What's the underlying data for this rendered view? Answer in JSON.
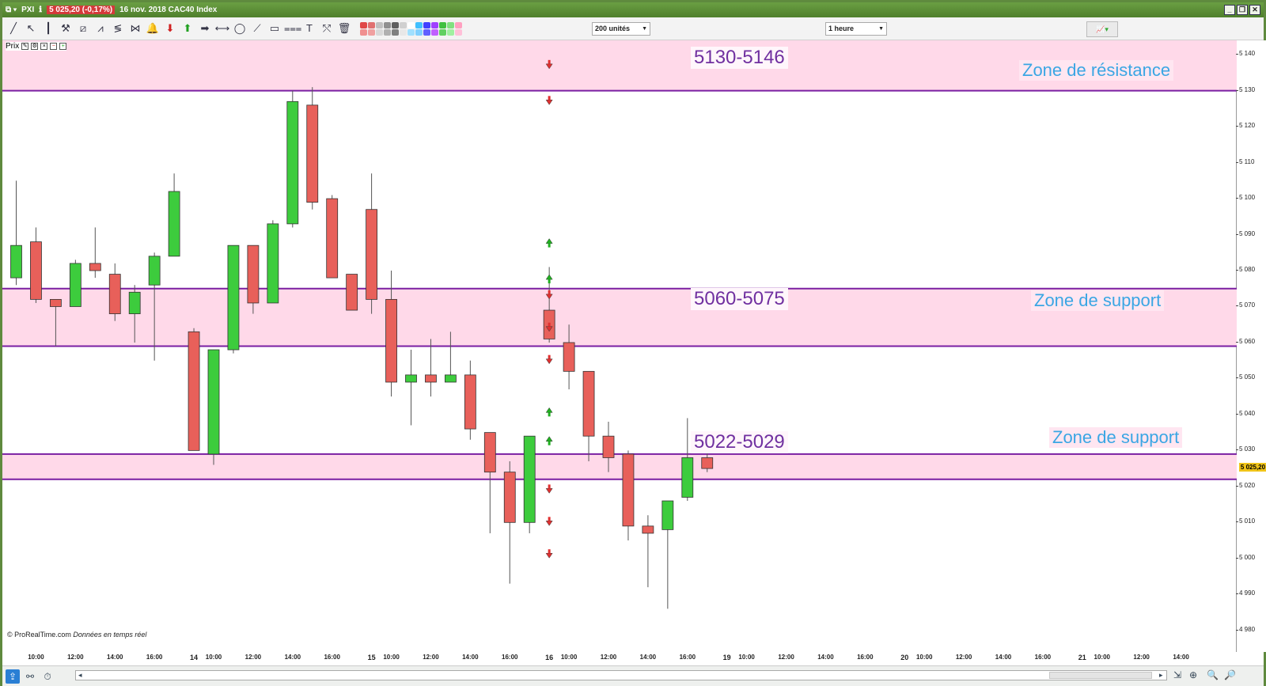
{
  "window": {
    "ticker": "PXI",
    "price_badge": "5 025,20 (-0,17%)",
    "date_label": "16 nov. 2018 CAC40 Index",
    "minimize": "_",
    "restore": "❐",
    "close": "✕"
  },
  "toolbar": {
    "units_select": "200 unités",
    "timeframe_select": "1 heure",
    "tools": [
      {
        "icon": "line-draw-icon",
        "glyph": "╱",
        "color": ""
      },
      {
        "icon": "cursor-icon",
        "glyph": "↖",
        "color": ""
      },
      {
        "icon": "vertical-line-icon",
        "glyph": "┃",
        "color": ""
      },
      {
        "icon": "measure-icon",
        "glyph": "⚒",
        "color": ""
      },
      {
        "icon": "channel-icon",
        "glyph": "⧄",
        "color": ""
      },
      {
        "icon": "fibonacci-fan-icon",
        "glyph": "⩘",
        "color": ""
      },
      {
        "icon": "fibonacci-icon",
        "glyph": "≶",
        "color": ""
      },
      {
        "icon": "gann-icon",
        "glyph": "⋈",
        "color": ""
      },
      {
        "icon": "alert-bell-icon",
        "glyph": "🔔",
        "color": "#d8a400"
      },
      {
        "icon": "sell-arrow-icon",
        "glyph": "⬇",
        "color": "red"
      },
      {
        "icon": "buy-arrow-icon",
        "glyph": "⬆",
        "color": "green"
      },
      {
        "icon": "right-arrow-icon",
        "glyph": "➡",
        "color": ""
      },
      {
        "icon": "horizontal-line-icon",
        "glyph": "⟷",
        "color": ""
      },
      {
        "icon": "ellipse-icon",
        "glyph": "◯",
        "color": ""
      },
      {
        "icon": "segment-icon",
        "glyph": "⟋",
        "color": ""
      },
      {
        "icon": "rectangle-icon",
        "glyph": "▭",
        "color": ""
      },
      {
        "icon": "fibo-retracement-icon",
        "glyph": "⩶",
        "color": ""
      },
      {
        "icon": "text-icon",
        "glyph": "T",
        "color": ""
      },
      {
        "icon": "crossed-tool-icon",
        "glyph": "⤲",
        "color": ""
      },
      {
        "icon": "trash-icon",
        "glyph": "🗑",
        "color": ""
      }
    ],
    "swatch_colors": [
      "#e04848",
      "#e07070",
      "#c0c0c0",
      "#909090",
      "#606060",
      "#d0d0d0",
      "#ffffff",
      "#40c0ff",
      "#4040ff",
      "#a040ff",
      "#40c040",
      "#80e080",
      "#ffa0c0",
      "#f09090",
      "#f0a0a0",
      "#d8d8d8",
      "#b0b0b0",
      "#808080",
      "#e8e8e8",
      "#a0e0ff",
      "#80d0ff",
      "#6060ff",
      "#c060ff",
      "#60d060",
      "#a0f0a0",
      "#ffc0d8"
    ]
  },
  "chart": {
    "price_label": "Prix",
    "copyright": "© ProRealTime.com",
    "copyright_note": "Données en temps réel",
    "last_price": "5 025,20",
    "colors": {
      "up": "#3dcc3d",
      "down": "#e8605a",
      "zone": "#ffd9e9",
      "line": "#7a1fa2",
      "label": "#7030a0",
      "zone_text": "#3aa6e4"
    }
  },
  "chart_data": {
    "type": "candlestick",
    "timeframe": "1 heure",
    "ylim": [
      4974,
      5144
    ],
    "y_ticks": [
      {
        "v": 5140,
        "label": "5 140"
      },
      {
        "v": 5130,
        "label": "5 130"
      },
      {
        "v": 5120,
        "label": "5 120"
      },
      {
        "v": 5110,
        "label": "5 110"
      },
      {
        "v": 5100,
        "label": "5 100"
      },
      {
        "v": 5090,
        "label": "5 090"
      },
      {
        "v": 5080,
        "label": "5 080"
      },
      {
        "v": 5070,
        "label": "5 070"
      },
      {
        "v": 5060,
        "label": "5 060"
      },
      {
        "v": 5050,
        "label": "5 050"
      },
      {
        "v": 5040,
        "label": "5 040"
      },
      {
        "v": 5030,
        "label": "5 030"
      },
      {
        "v": 5020,
        "label": "5 020"
      },
      {
        "v": 5010,
        "label": "5 010"
      },
      {
        "v": 5000,
        "label": "5 000"
      },
      {
        "v": 4990,
        "label": "4 990"
      },
      {
        "v": 4980,
        "label": "4 980"
      }
    ],
    "x_ticks": [
      {
        "i": 1,
        "label": "10:00"
      },
      {
        "i": 3,
        "label": "12:00"
      },
      {
        "i": 5,
        "label": "14:00"
      },
      {
        "i": 7,
        "label": "16:00"
      },
      {
        "i": 9,
        "label": "14",
        "day": true
      },
      {
        "i": 10,
        "label": "10:00"
      },
      {
        "i": 12,
        "label": "12:00"
      },
      {
        "i": 14,
        "label": "14:00"
      },
      {
        "i": 16,
        "label": "16:00"
      },
      {
        "i": 18,
        "label": "15",
        "day": true
      },
      {
        "i": 19,
        "label": "10:00"
      },
      {
        "i": 21,
        "label": "12:00"
      },
      {
        "i": 23,
        "label": "14:00"
      },
      {
        "i": 25,
        "label": "16:00"
      },
      {
        "i": 27,
        "label": "16",
        "day": true
      },
      {
        "i": 28,
        "label": "10:00"
      },
      {
        "i": 30,
        "label": "12:00"
      },
      {
        "i": 32,
        "label": "14:00"
      },
      {
        "i": 34,
        "label": "16:00"
      },
      {
        "i": 36,
        "label": "19",
        "day": true
      },
      {
        "i": 37,
        "label": "10:00"
      },
      {
        "i": 39,
        "label": "12:00"
      },
      {
        "i": 41,
        "label": "14:00"
      },
      {
        "i": 43,
        "label": "16:00"
      },
      {
        "i": 45,
        "label": "20",
        "day": true
      },
      {
        "i": 46,
        "label": "10:00"
      },
      {
        "i": 48,
        "label": "12:00"
      },
      {
        "i": 50,
        "label": "14:00"
      },
      {
        "i": 52,
        "label": "16:00"
      },
      {
        "i": 54,
        "label": "21",
        "day": true
      },
      {
        "i": 55,
        "label": "10:00"
      },
      {
        "i": 57,
        "label": "12:00"
      },
      {
        "i": 59,
        "label": "14:00"
      }
    ],
    "candles": [
      {
        "o": 5078,
        "h": 5105,
        "l": 5076,
        "c": 5087
      },
      {
        "o": 5088,
        "h": 5092,
        "l": 5071,
        "c": 5072
      },
      {
        "o": 5072,
        "h": 5072,
        "l": 5059,
        "c": 5070
      },
      {
        "o": 5070,
        "h": 5083,
        "l": 5070,
        "c": 5082
      },
      {
        "o": 5082,
        "h": 5092,
        "l": 5078,
        "c": 5080
      },
      {
        "o": 5079,
        "h": 5082,
        "l": 5066,
        "c": 5068
      },
      {
        "o": 5068,
        "h": 5076,
        "l": 5060,
        "c": 5074
      },
      {
        "o": 5076,
        "h": 5085,
        "l": 5055,
        "c": 5084
      },
      {
        "o": 5084,
        "h": 5107,
        "l": 5084,
        "c": 5102
      },
      {
        "o": 5063,
        "h": 5064,
        "l": 5030,
        "c": 5030
      },
      {
        "o": 5029,
        "h": 5058,
        "l": 5026,
        "c": 5058
      },
      {
        "o": 5058,
        "h": 5087,
        "l": 5057,
        "c": 5087
      },
      {
        "o": 5087,
        "h": 5087,
        "l": 5068,
        "c": 5071
      },
      {
        "o": 5071,
        "h": 5094,
        "l": 5071,
        "c": 5093
      },
      {
        "o": 5093,
        "h": 5130,
        "l": 5092,
        "c": 5127
      },
      {
        "o": 5126,
        "h": 5131,
        "l": 5097,
        "c": 5099
      },
      {
        "o": 5100,
        "h": 5101,
        "l": 5078,
        "c": 5078
      },
      {
        "o": 5079,
        "h": 5079,
        "l": 5069,
        "c": 5069
      },
      {
        "o": 5097,
        "h": 5107,
        "l": 5068,
        "c": 5072
      },
      {
        "o": 5072,
        "h": 5080,
        "l": 5045,
        "c": 5049
      },
      {
        "o": 5049,
        "h": 5058,
        "l": 5037,
        "c": 5051
      },
      {
        "o": 5051,
        "h": 5061,
        "l": 5045,
        "c": 5049
      },
      {
        "o": 5049,
        "h": 5063,
        "l": 5049,
        "c": 5051
      },
      {
        "o": 5051,
        "h": 5055,
        "l": 5033,
        "c": 5036
      },
      {
        "o": 5035,
        "h": 5035,
        "l": 5007,
        "c": 5024
      },
      {
        "o": 5024,
        "h": 5027,
        "l": 4993,
        "c": 5010
      },
      {
        "o": 5010,
        "h": 5034,
        "l": 5007,
        "c": 5034
      },
      {
        "o": 5069,
        "h": 5081,
        "l": 5060,
        "c": 5061
      },
      {
        "o": 5060,
        "h": 5065,
        "l": 5047,
        "c": 5052
      },
      {
        "o": 5052,
        "h": 5052,
        "l": 5027,
        "c": 5034
      },
      {
        "o": 5034,
        "h": 5038,
        "l": 5024,
        "c": 5028
      },
      {
        "o": 5029,
        "h": 5030,
        "l": 5005,
        "c": 5009
      },
      {
        "o": 5009,
        "h": 5012,
        "l": 4992,
        "c": 5007
      },
      {
        "o": 5008,
        "h": 5016,
        "l": 4986,
        "c": 5016
      },
      {
        "o": 5017,
        "h": 5039,
        "l": 5016,
        "c": 5028
      },
      {
        "o": 5028,
        "h": 5034,
        "l": 5024,
        "c": 5025
      }
    ],
    "signal_arrows": [
      {
        "price": 5137,
        "dir": "down"
      },
      {
        "price": 5127,
        "dir": "down"
      },
      {
        "price": 5088,
        "dir": "up"
      },
      {
        "price": 5078,
        "dir": "up"
      },
      {
        "price": 5073,
        "dir": "down"
      },
      {
        "price": 5064,
        "dir": "down"
      },
      {
        "price": 5055,
        "dir": "down"
      },
      {
        "price": 5041,
        "dir": "up"
      },
      {
        "price": 5033,
        "dir": "up"
      },
      {
        "price": 5019,
        "dir": "down"
      },
      {
        "price": 5010,
        "dir": "down"
      },
      {
        "price": 5001,
        "dir": "down"
      }
    ],
    "arrow_candle": 27,
    "horizontal_lines": [
      5130,
      5075,
      5059,
      5029,
      5022
    ],
    "zones": [
      {
        "from": 5130,
        "to": 5144,
        "label": "5130-5146",
        "text": "Zone de résistance"
      },
      {
        "from": 5059,
        "to": 5075,
        "label": "5060-5075",
        "text": "Zone de support"
      },
      {
        "from": 5022,
        "to": 5029,
        "label": "5022-5029",
        "text": "Zone de support"
      }
    ]
  }
}
